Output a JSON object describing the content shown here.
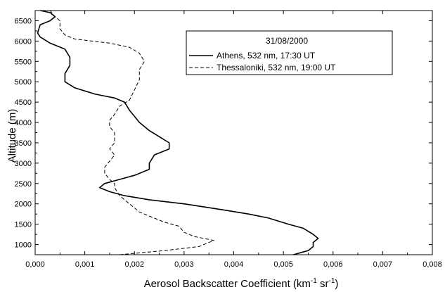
{
  "chart_data": {
    "type": "line",
    "orientation": "vertical-profile",
    "xlabel_main": "Aerosol Backscatter Coefficient (km",
    "xlabel_sup1": "-1",
    "xlabel_mid": " sr",
    "xlabel_sup2": "-1",
    "xlabel_end": ")",
    "ylabel": "Altitude (m)",
    "xlim": [
      0,
      0.008
    ],
    "ylim": [
      750,
      6750
    ],
    "x_ticks": [
      0,
      0.001,
      0.002,
      0.003,
      0.004,
      0.005,
      0.006,
      0.007,
      0.008
    ],
    "x_tick_labels": [
      "0,000",
      "0,001",
      "0,002",
      "0,003",
      "0,004",
      "0,005",
      "0,006",
      "0,007",
      "0,008"
    ],
    "y_ticks": [
      1000,
      1500,
      2000,
      2500,
      3000,
      3500,
      4000,
      4500,
      5000,
      5500,
      6000,
      6500
    ],
    "y_tick_labels": [
      "1000",
      "1500",
      "2000",
      "2500",
      "3000",
      "3500",
      "4000",
      "4500",
      "5000",
      "5500",
      "6000",
      "6500"
    ],
    "grid": false,
    "legend_position": "top-right",
    "legend_title": "31/08/2000",
    "series": [
      {
        "name": "Athens, 532 nm, 17:30 UT",
        "style": "solid",
        "color": "#000000",
        "points": [
          [
            0.0052,
            750
          ],
          [
            0.0055,
            850
          ],
          [
            0.0056,
            950
          ],
          [
            0.0056,
            1050
          ],
          [
            0.0057,
            1150
          ],
          [
            0.0056,
            1250
          ],
          [
            0.0054,
            1400
          ],
          [
            0.0051,
            1500
          ],
          [
            0.0047,
            1650
          ],
          [
            0.0043,
            1750
          ],
          [
            0.0038,
            1850
          ],
          [
            0.003,
            2000
          ],
          [
            0.0023,
            2100
          ],
          [
            0.0018,
            2200
          ],
          [
            0.0015,
            2300
          ],
          [
            0.0013,
            2400
          ],
          [
            0.0014,
            2500
          ],
          [
            0.0017,
            2600
          ],
          [
            0.002,
            2700
          ],
          [
            0.0023,
            2850
          ],
          [
            0.0023,
            3000
          ],
          [
            0.0024,
            3200
          ],
          [
            0.0027,
            3350
          ],
          [
            0.0027,
            3500
          ],
          [
            0.0025,
            3650
          ],
          [
            0.0023,
            3800
          ],
          [
            0.0021,
            4000
          ],
          [
            0.002,
            4150
          ],
          [
            0.0019,
            4300
          ],
          [
            0.0018,
            4500
          ],
          [
            0.0016,
            4600
          ],
          [
            0.0012,
            4700
          ],
          [
            0.0008,
            4850
          ],
          [
            0.0006,
            5000
          ],
          [
            0.0006,
            5200
          ],
          [
            0.0007,
            5400
          ],
          [
            0.0007,
            5600
          ],
          [
            0.0006,
            5800
          ],
          [
            0.0003,
            5950
          ],
          [
            0.0001,
            6100
          ],
          [
            5e-05,
            6200
          ],
          [
            0.0001,
            6400
          ],
          [
            0.0003,
            6500
          ],
          [
            0.0004,
            6600
          ],
          [
            0.0003,
            6700
          ],
          [
            0.0001,
            6750
          ]
        ]
      },
      {
        "name": "Thessaloniki, 532 nm, 19:00 UT",
        "style": "dashed",
        "color": "#000000",
        "points": [
          [
            0.0017,
            750
          ],
          [
            0.0026,
            850
          ],
          [
            0.0033,
            950
          ],
          [
            0.0035,
            1050
          ],
          [
            0.0036,
            1100
          ],
          [
            0.0032,
            1200
          ],
          [
            0.003,
            1300
          ],
          [
            0.0029,
            1450
          ],
          [
            0.0026,
            1550
          ],
          [
            0.0023,
            1700
          ],
          [
            0.0021,
            1800
          ],
          [
            0.0019,
            2000
          ],
          [
            0.0017,
            2200
          ],
          [
            0.0016,
            2400
          ],
          [
            0.0016,
            2500
          ],
          [
            0.0015,
            2600
          ],
          [
            0.0014,
            2750
          ],
          [
            0.0014,
            2900
          ],
          [
            0.0015,
            3050
          ],
          [
            0.0016,
            3200
          ],
          [
            0.0015,
            3350
          ],
          [
            0.0016,
            3500
          ],
          [
            0.0016,
            3750
          ],
          [
            0.0015,
            3900
          ],
          [
            0.0015,
            4050
          ],
          [
            0.0016,
            4200
          ],
          [
            0.0017,
            4400
          ],
          [
            0.0019,
            4550
          ],
          [
            0.002,
            4800
          ],
          [
            0.0021,
            5050
          ],
          [
            0.0021,
            5300
          ],
          [
            0.0022,
            5500
          ],
          [
            0.0021,
            5700
          ],
          [
            0.0019,
            5850
          ],
          [
            0.0015,
            5950
          ],
          [
            0.0008,
            6050
          ],
          [
            0.0006,
            6150
          ],
          [
            0.0005,
            6300
          ],
          [
            0.0005,
            6500
          ],
          [
            0.0004,
            6600
          ],
          [
            0.0003,
            6750
          ]
        ]
      }
    ]
  }
}
